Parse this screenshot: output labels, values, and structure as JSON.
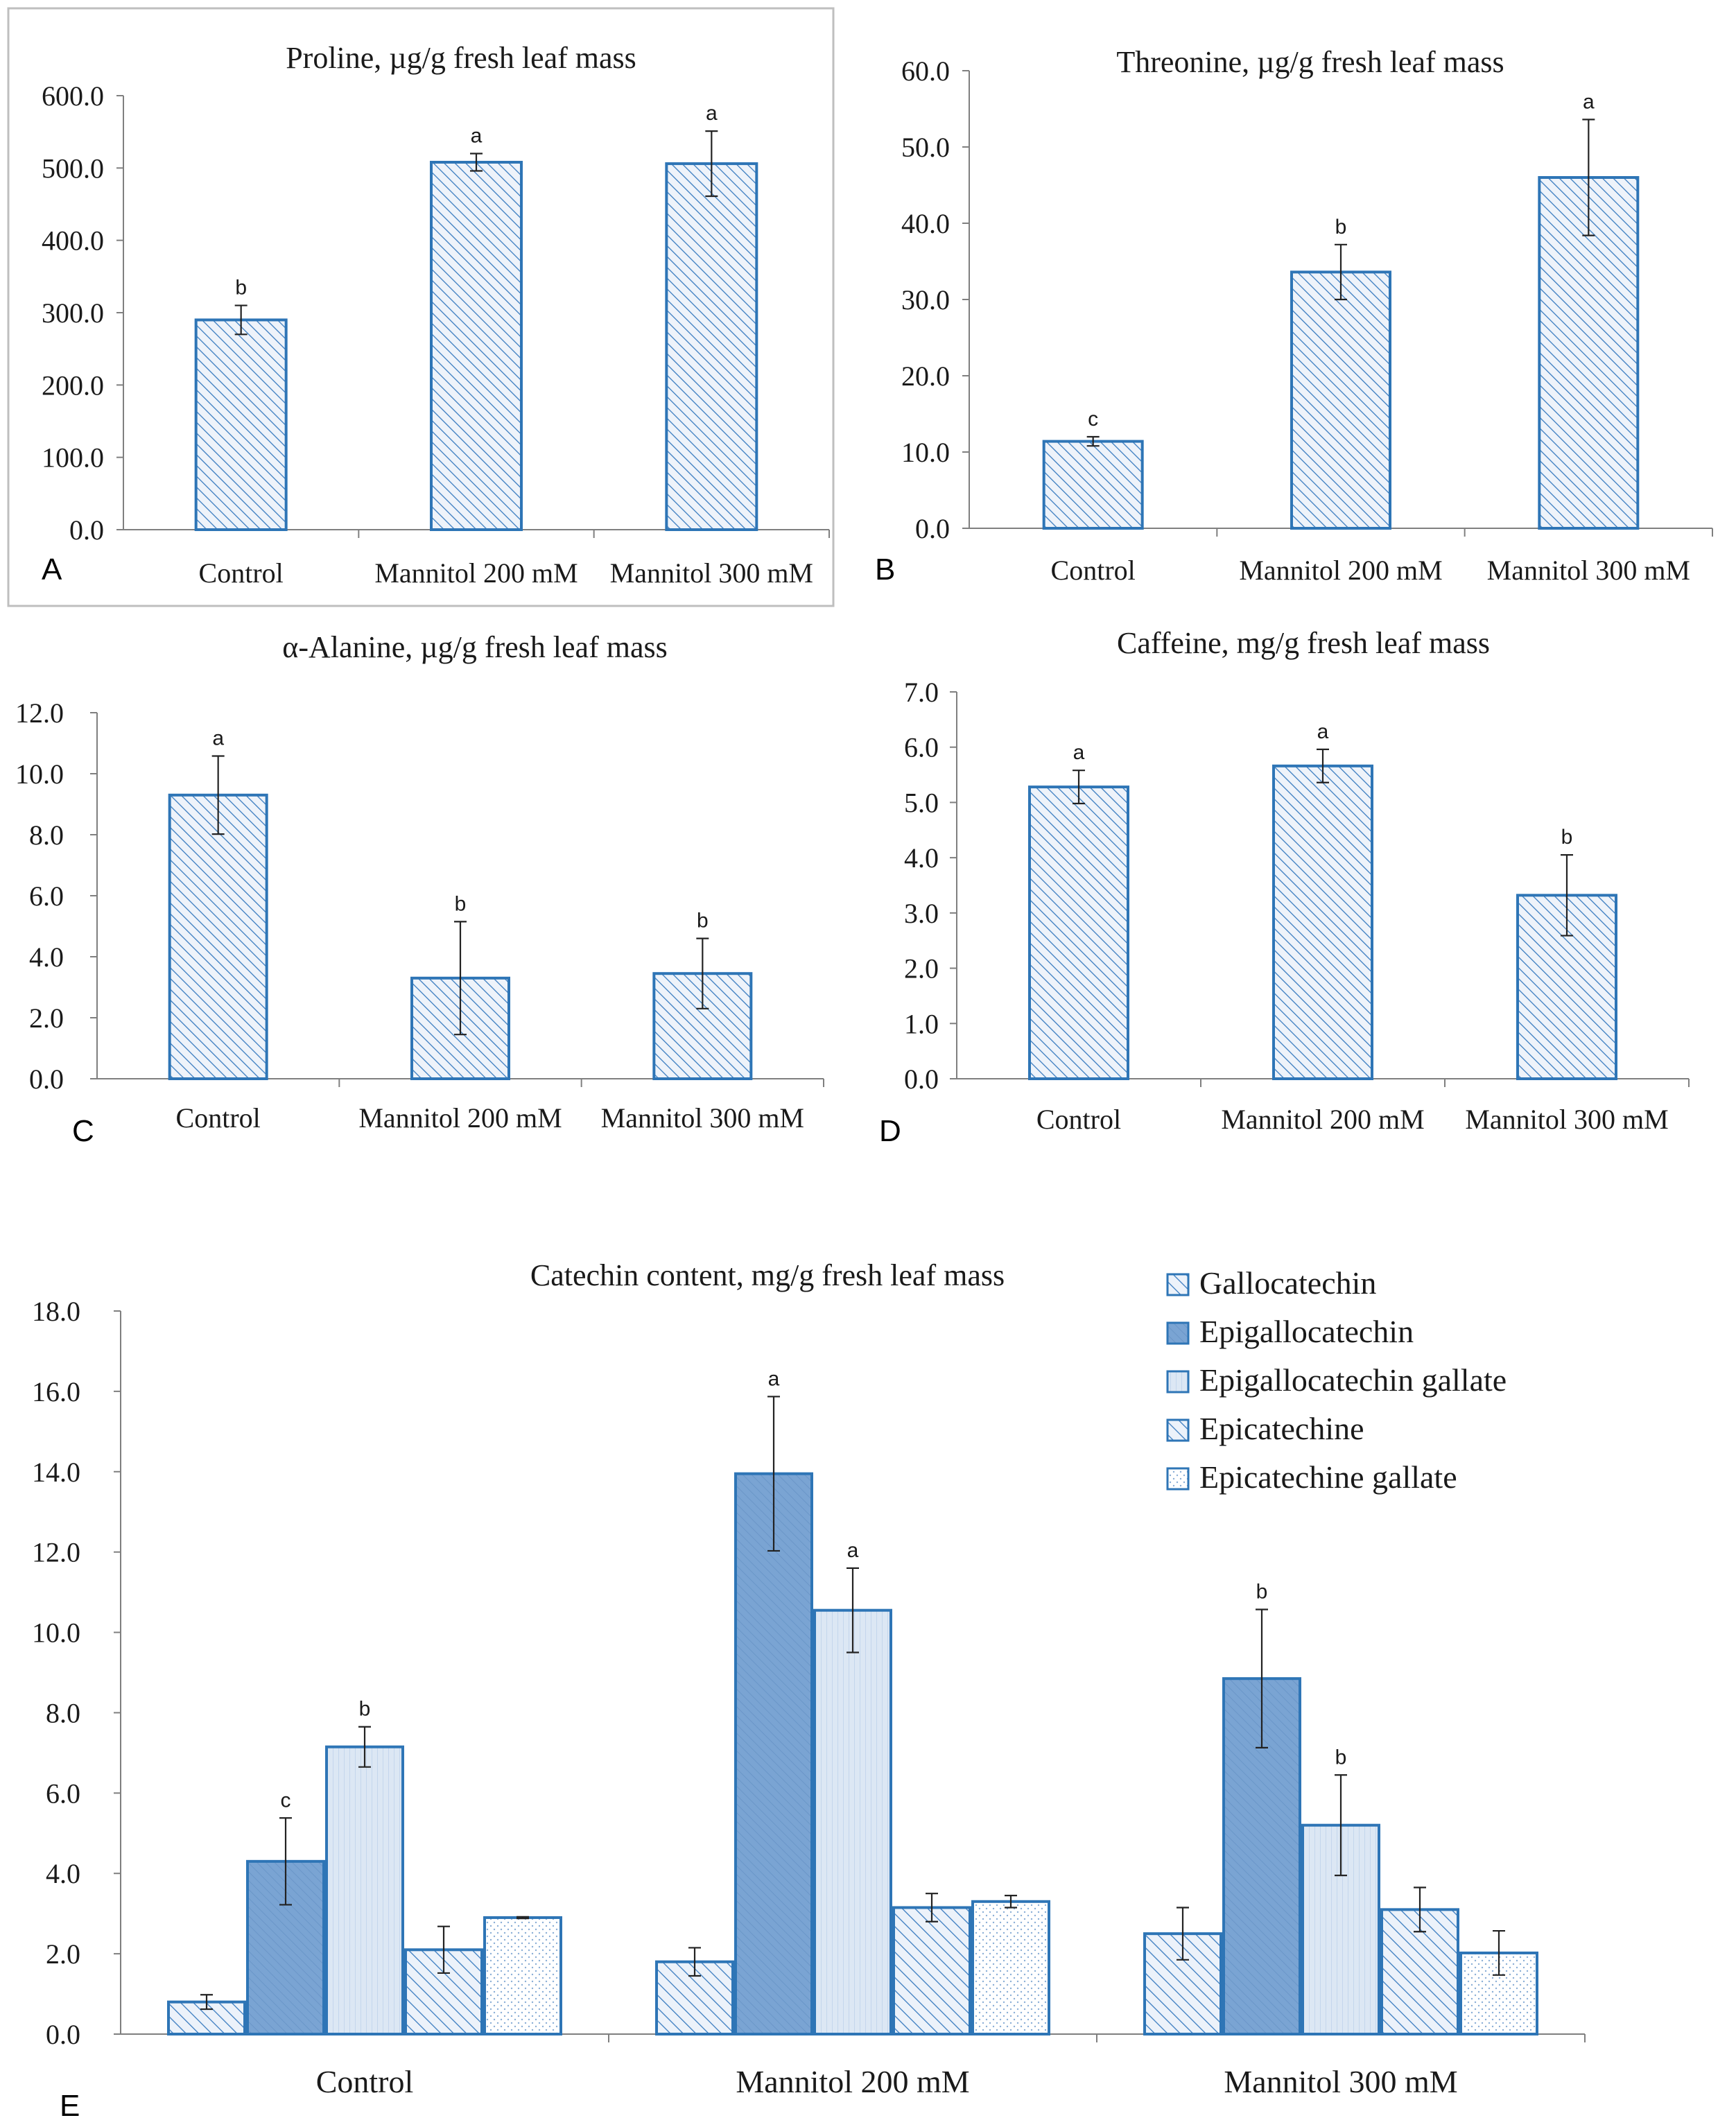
{
  "colors": {
    "bar_outline": "#2e75b6",
    "hatch_line": "#3a7cc0",
    "egc_fill": "#7aa4d3",
    "egcg_fill": "#dce7f4",
    "egcg_line": "#9bb9de",
    "ecg_dot": "#8aaed6",
    "axis": "#7f7f7f",
    "error_bar": "#222222"
  },
  "chart_data": [
    {
      "id": "A",
      "panel_letter": "A",
      "type": "bar",
      "title": "Proline, µg/g fresh leaf mass",
      "categories": [
        "Control",
        "Mannitol 200 mM",
        "Mannitol 300 mM"
      ],
      "values": [
        290,
        508,
        506
      ],
      "errors": [
        20,
        12,
        45
      ],
      "significance": [
        "b",
        "a",
        "a"
      ],
      "ylim": [
        0,
        600
      ],
      "yticks": [
        0,
        100,
        200,
        300,
        400,
        500,
        600
      ],
      "tick_labels": [
        "0.0",
        "100.0",
        "200.0",
        "300.0",
        "400.0",
        "500.0",
        "600.0"
      ],
      "xlabel": "",
      "ylabel": ""
    },
    {
      "id": "B",
      "panel_letter": "B",
      "type": "bar",
      "title": "Threonine, µg/g fresh leaf mass",
      "categories": [
        "Control",
        "Mannitol 200 mM",
        "Mannitol 300 mM"
      ],
      "values": [
        11.4,
        33.6,
        46.0
      ],
      "errors": [
        0.6,
        3.6,
        7.6
      ],
      "significance": [
        "c",
        "b",
        "a"
      ],
      "ylim": [
        0,
        60
      ],
      "yticks": [
        0,
        10,
        20,
        30,
        40,
        50,
        60
      ],
      "tick_labels": [
        "0.0",
        "10.0",
        "20.0",
        "30.0",
        "40.0",
        "50.0",
        "60.0"
      ],
      "xlabel": "",
      "ylabel": ""
    },
    {
      "id": "C",
      "panel_letter": "C",
      "type": "bar",
      "title": "α-Alanine, µg/g fresh leaf mass",
      "categories": [
        "Control",
        "Mannitol 200 mM",
        "Mannitol 300 mM"
      ],
      "values": [
        9.3,
        3.3,
        3.45
      ],
      "errors": [
        1.28,
        1.85,
        1.15
      ],
      "significance": [
        "a",
        "b",
        "b"
      ],
      "ylim": [
        0,
        12
      ],
      "yticks": [
        0,
        2,
        4,
        6,
        8,
        10,
        12
      ],
      "tick_labels": [
        "0.0",
        "2.0",
        "4.0",
        "6.0",
        "8.0",
        "10.0",
        "12.0"
      ],
      "xlabel": "",
      "ylabel": ""
    },
    {
      "id": "D",
      "panel_letter": "D",
      "type": "bar",
      "title": "Caffeine, mg/g fresh leaf mass",
      "categories": [
        "Control",
        "Mannitol 200 mM",
        "Mannitol 300 mM"
      ],
      "values": [
        5.28,
        5.66,
        3.32
      ],
      "errors": [
        0.3,
        0.3,
        0.73
      ],
      "significance": [
        "a",
        "a",
        "b"
      ],
      "ylim": [
        0,
        7
      ],
      "yticks": [
        0,
        1,
        2,
        3,
        4,
        5,
        6,
        7
      ],
      "tick_labels": [
        "0.0",
        "1.0",
        "2.0",
        "3.0",
        "4.0",
        "5.0",
        "6.0",
        "7.0"
      ],
      "xlabel": "",
      "ylabel": ""
    },
    {
      "id": "E",
      "panel_letter": "E",
      "type": "bar",
      "title": "Catechin content, mg/g fresh leaf mass",
      "categories": [
        "Control",
        "Mannitol 200 mM",
        "Mannitol 300 mM"
      ],
      "series": [
        {
          "name": "Gallocatechin",
          "style": "hatch",
          "values": [
            0.8,
            1.8,
            2.5
          ],
          "errors": [
            0.18,
            0.35,
            0.65
          ],
          "significance": [
            "",
            "",
            ""
          ]
        },
        {
          "name": "Epigallocatechin",
          "style": "solid",
          "values": [
            4.3,
            13.95,
            8.85
          ],
          "errors": [
            1.08,
            1.92,
            1.72
          ],
          "significance": [
            "c",
            "a",
            "b"
          ]
        },
        {
          "name": "Epigallocatechin gallate",
          "style": "light",
          "values": [
            7.15,
            10.55,
            5.2
          ],
          "errors": [
            0.5,
            1.05,
            1.25
          ],
          "significance": [
            "b",
            "a",
            "b"
          ]
        },
        {
          "name": "Epicatechine",
          "style": "hatch",
          "values": [
            2.1,
            3.15,
            3.1
          ],
          "errors": [
            0.58,
            0.35,
            0.55
          ],
          "significance": [
            "",
            "",
            ""
          ]
        },
        {
          "name": "Epicatechine gallate",
          "style": "dots",
          "values": [
            2.9,
            3.3,
            2.02
          ],
          "errors": [
            0.02,
            0.15,
            0.55
          ],
          "significance": [
            "",
            "",
            ""
          ]
        }
      ],
      "ylim": [
        0,
        18
      ],
      "yticks": [
        0,
        2,
        4,
        6,
        8,
        10,
        12,
        14,
        16,
        18
      ],
      "tick_labels": [
        "0.0",
        "2.0",
        "4.0",
        "6.0",
        "8.0",
        "10.0",
        "12.0",
        "14.0",
        "16.0",
        "18.0"
      ],
      "legend_position": "top-right",
      "xlabel": "",
      "ylabel": ""
    }
  ]
}
